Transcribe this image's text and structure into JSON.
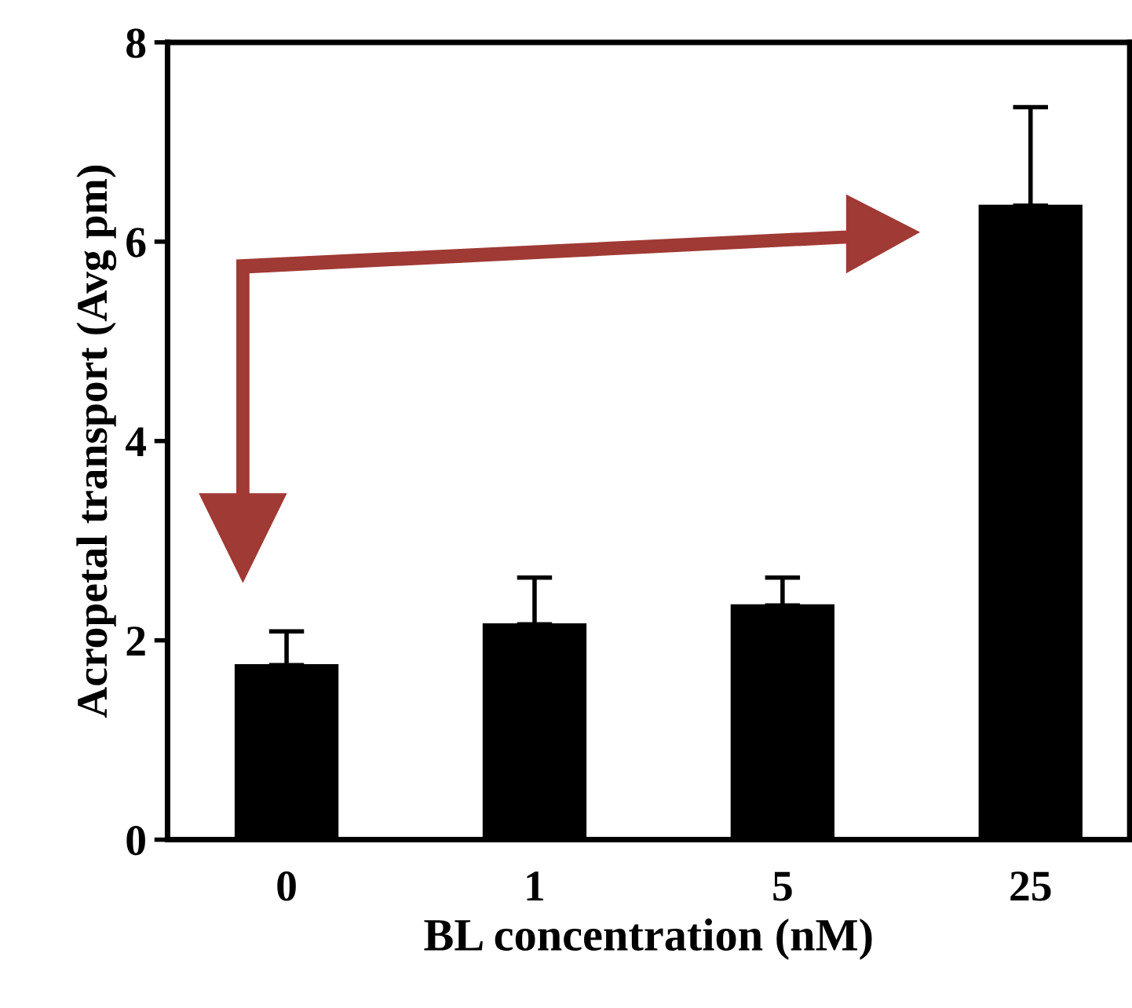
{
  "chart_data": {
    "type": "bar",
    "xlabel": "BL concentration (nM)",
    "ylabel": "Acropetal transport (Avg pm)",
    "categories": [
      "0",
      "1",
      "5",
      "25"
    ],
    "values": [
      1.75,
      2.16,
      2.35,
      6.36
    ],
    "errors": [
      [
        1.75,
        2.09
      ],
      [
        2.16,
        2.63
      ],
      [
        2.35,
        2.63
      ],
      [
        6.36,
        7.35
      ]
    ],
    "color": "#000000",
    "ylim": [
      0,
      8
    ],
    "yticks": [
      0,
      2,
      4,
      6,
      8
    ],
    "grid": false
  }
}
